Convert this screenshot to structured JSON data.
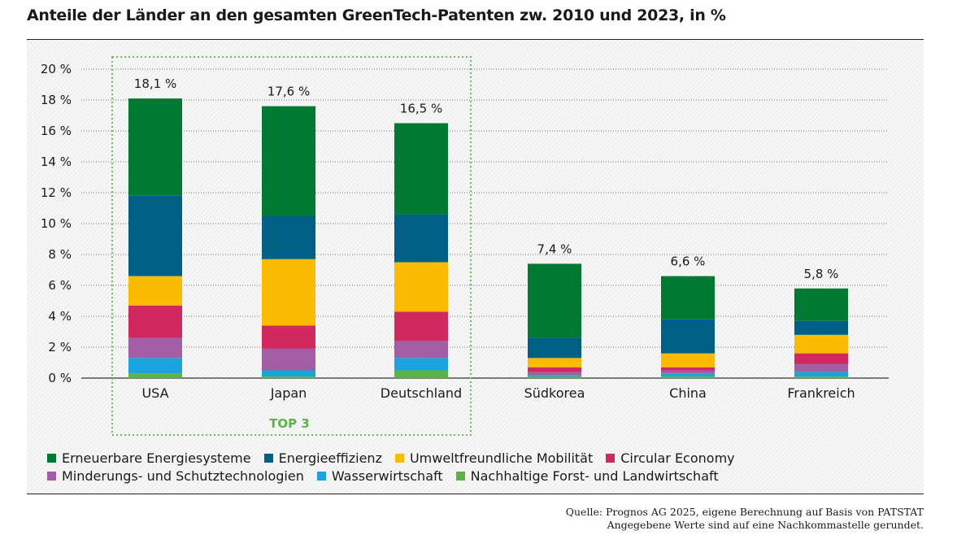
{
  "title": "Anteile der Länder an den gesamten GreenTech-Patenten zw. 2010 und 2023, in %",
  "top_group_label": "TOP 3",
  "source_lines": [
    "Quelle: Prognos AG 2025, eigene Berechnung auf Basis von PATSTAT",
    "Angegebene Werte sind auf eine Nachkommastelle gerundet."
  ],
  "chart_data": {
    "type": "bar",
    "stacked": true,
    "categories": [
      "USA",
      "Japan",
      "Deutschland",
      "Südkorea",
      "China",
      "Frankreich"
    ],
    "series": [
      {
        "name": "Nachhaltige Forst- und Landwirtschaft",
        "color": "#5cb346",
        "values": [
          0.3,
          0.1,
          0.5,
          0.1,
          0.1,
          0.1
        ]
      },
      {
        "name": "Wasserwirtschaft",
        "color": "#1ba3dd",
        "values": [
          1.0,
          0.4,
          0.8,
          0.1,
          0.2,
          0.3
        ]
      },
      {
        "name": "Minderungs- und Schutztechnologien",
        "color": "#a15ea5",
        "values": [
          1.3,
          1.4,
          1.1,
          0.2,
          0.2,
          0.5
        ]
      },
      {
        "name": "Circular Economy",
        "color": "#d0285f",
        "values": [
          2.1,
          1.5,
          1.9,
          0.3,
          0.2,
          0.7
        ]
      },
      {
        "name": "Umweltfreundliche Mobilität",
        "color": "#fabb00",
        "values": [
          1.9,
          4.3,
          3.2,
          0.6,
          0.9,
          1.2
        ]
      },
      {
        "name": "Energieeffizienz",
        "color": "#005f85",
        "values": [
          5.2,
          2.8,
          3.1,
          1.3,
          2.2,
          0.9
        ]
      },
      {
        "name": "Erneuerbare Energiesysteme",
        "color": "#007a33",
        "values": [
          6.3,
          7.1,
          5.9,
          4.8,
          2.8,
          2.1
        ]
      }
    ],
    "totals": [
      18.1,
      17.6,
      16.5,
      7.4,
      6.6,
      5.8
    ],
    "total_labels": [
      "18,1 %",
      "17,6 %",
      "16,5 %",
      "7,4 %",
      "6,6 %",
      "5,8 %"
    ],
    "ylim": [
      0,
      20
    ],
    "yticks": [
      0,
      2,
      4,
      6,
      8,
      10,
      12,
      14,
      16,
      18,
      20
    ],
    "ytick_labels": [
      "0 %",
      "2 %",
      "4 %",
      "6 %",
      "8 %",
      "10 %",
      "12 %",
      "14 %",
      "16 %",
      "18 %",
      "20 %"
    ],
    "grid": true,
    "legend": {
      "position": "bottom",
      "rows": [
        [
          "Erneuerbare Energiesysteme",
          "Energieeffizienz",
          "Umweltfreundliche Mobilität",
          "Circular Economy"
        ],
        [
          "Minderungs- und Schutztechnologien",
          "Wasserwirtschaft",
          "Nachhaltige Forst- und Landwirtschaft"
        ]
      ]
    }
  }
}
